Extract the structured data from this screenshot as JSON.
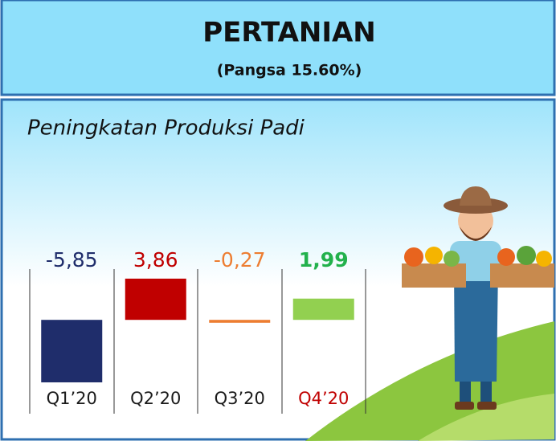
{
  "header": {
    "title": "PERTANIAN",
    "subtitle": "(Pangsa 15.60%)"
  },
  "chart_data": {
    "type": "bar",
    "title": "Peningkatan Produksi Padi",
    "categories": [
      "Q1’20",
      "Q2’20",
      "Q3’20",
      "Q4’20"
    ],
    "values": [
      -5.85,
      3.86,
      -0.27,
      1.99
    ],
    "value_labels": [
      "-5,85",
      "3,86",
      "-0,27",
      "1,99"
    ],
    "colors": [
      "#1f2d6b",
      "#c00000",
      "#ed7d31",
      "#92d050"
    ],
    "label_colors": [
      "#1f2d6b",
      "#c00000",
      "#ed7d31",
      "#22b14c"
    ],
    "category_colors": [
      "#1a1a1a",
      "#1a1a1a",
      "#1a1a1a",
      "#c00000"
    ],
    "ylim": [
      -6,
      4
    ]
  }
}
